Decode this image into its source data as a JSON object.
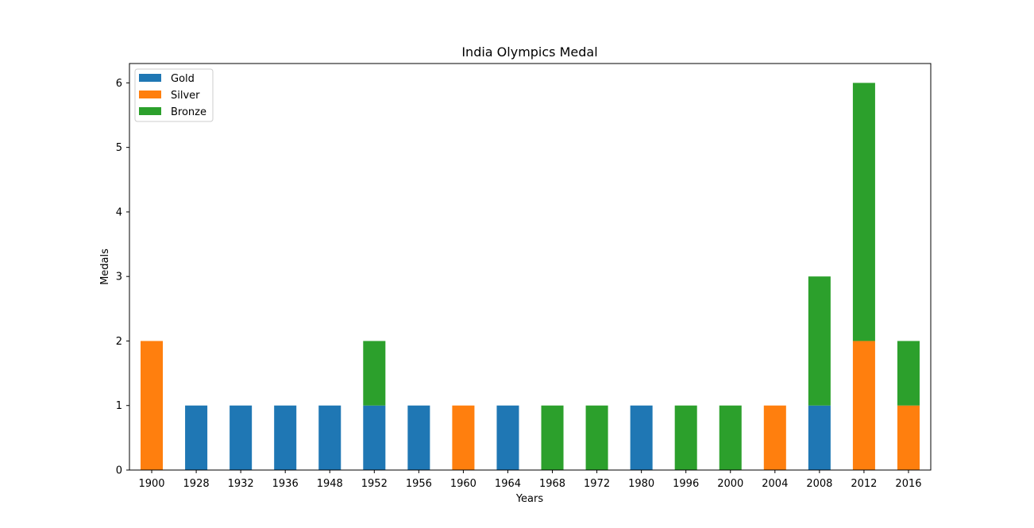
{
  "chart_data": {
    "type": "bar",
    "stacked": true,
    "title": "India Olympics Medal",
    "xlabel": "Years",
    "ylabel": "Medals",
    "ylim": [
      0,
      6.3
    ],
    "yticks": [
      0,
      1,
      2,
      3,
      4,
      5,
      6
    ],
    "grid": false,
    "legend_position": "top-left",
    "categories": [
      "1900",
      "1928",
      "1932",
      "1936",
      "1948",
      "1952",
      "1956",
      "1960",
      "1964",
      "1968",
      "1972",
      "1980",
      "1996",
      "2000",
      "2004",
      "2008",
      "2012",
      "2016"
    ],
    "series": [
      {
        "name": "Gold",
        "color": "#1f77b4",
        "values": [
          0,
          1,
          1,
          1,
          1,
          1,
          1,
          0,
          1,
          0,
          0,
          1,
          0,
          0,
          0,
          1,
          0,
          0
        ]
      },
      {
        "name": "Silver",
        "color": "#ff7f0e",
        "values": [
          2,
          0,
          0,
          0,
          0,
          0,
          0,
          1,
          0,
          0,
          0,
          0,
          0,
          0,
          1,
          0,
          2,
          1
        ]
      },
      {
        "name": "Bronze",
        "color": "#2ca02c",
        "values": [
          0,
          0,
          0,
          0,
          0,
          1,
          0,
          0,
          0,
          1,
          1,
          0,
          1,
          1,
          0,
          2,
          4,
          1
        ]
      }
    ]
  }
}
